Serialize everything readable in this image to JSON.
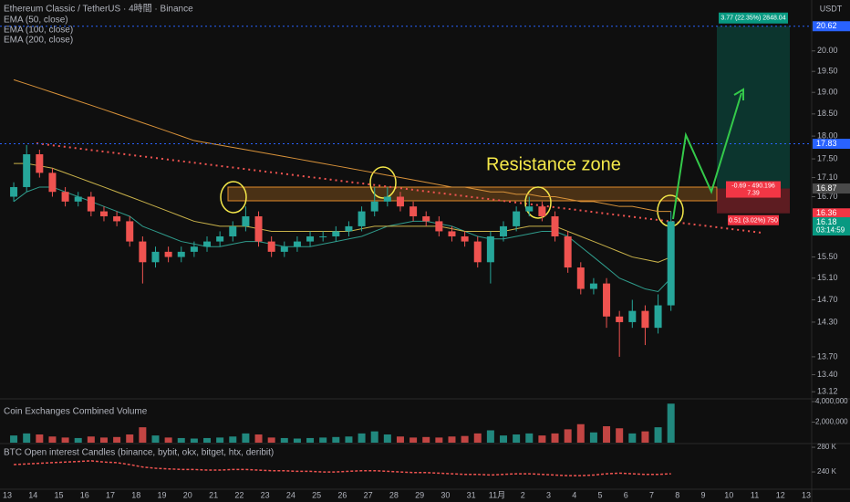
{
  "header": {
    "symbol": "Ethereum Classic / TetherUS · 4時間 · Binance",
    "currency": "USDT"
  },
  "chart_data": [
    {
      "type": "candlestick",
      "log_scale": true,
      "up_color": "#26a69a",
      "down_color": "#ef5350",
      "ylim": [
        13.02,
        21.3
      ],
      "yticks": [
        {
          "value": 20,
          "label": "20.00"
        },
        {
          "value": 19.5,
          "label": "19.50"
        },
        {
          "value": 19,
          "label": "19.00"
        },
        {
          "value": 18.5,
          "label": "18.50"
        },
        {
          "value": 18,
          "label": "18.00"
        },
        {
          "value": 17.5,
          "label": "17.50"
        },
        {
          "value": 17.1,
          "label": "17.10"
        },
        {
          "value": 16.7,
          "label": "16.70"
        },
        {
          "value": 15.5,
          "label": "15.50"
        },
        {
          "value": 15.1,
          "label": "15.10"
        },
        {
          "value": 14.7,
          "label": "14.70"
        },
        {
          "value": 14.3,
          "label": "14.30"
        },
        {
          "value": 13.7,
          "label": "13.70"
        },
        {
          "value": 13.4,
          "label": "13.40"
        },
        {
          "value": 13.12,
          "label": "13.12"
        }
      ],
      "x_axis_labels": [
        "13",
        "14",
        "15",
        "16",
        "17",
        "18",
        "19",
        "20",
        "21",
        "22",
        "23",
        "24",
        "25",
        "26",
        "27",
        "28",
        "29",
        "30",
        "31",
        "11月",
        "2",
        "3",
        "4",
        "5",
        "6",
        "7",
        "8",
        "9",
        "10",
        "11",
        "12",
        "13"
      ],
      "open": [
        16.7,
        16.9,
        17.6,
        17.2,
        16.8,
        16.6,
        16.7,
        16.4,
        16.3,
        16.2,
        15.8,
        15.4,
        15.6,
        15.5,
        15.6,
        15.7,
        15.8,
        15.9,
        16.1,
        16.3,
        15.8,
        15.6,
        15.7,
        15.8,
        15.9,
        15.9,
        16.0,
        16.1,
        16.4,
        16.6,
        16.7,
        16.5,
        16.3,
        16.2,
        16.0,
        15.9,
        15.8,
        15.4,
        15.9,
        16.1,
        16.4,
        16.5,
        16.3,
        15.9,
        15.3,
        14.9,
        15.0,
        14.4,
        14.3,
        14.5,
        14.2,
        14.6
      ],
      "high": [
        17.0,
        17.8,
        17.7,
        17.3,
        16.9,
        16.8,
        16.8,
        16.5,
        16.4,
        16.3,
        15.9,
        15.7,
        15.7,
        15.7,
        15.8,
        15.9,
        16.0,
        16.2,
        16.5,
        16.4,
        15.9,
        15.8,
        15.9,
        16.0,
        16.0,
        16.1,
        16.2,
        16.5,
        16.9,
        16.9,
        16.8,
        16.6,
        16.4,
        16.3,
        16.1,
        16.0,
        15.9,
        16.0,
        16.2,
        16.5,
        16.7,
        16.6,
        16.4,
        16.0,
        15.4,
        15.1,
        15.1,
        14.5,
        14.7,
        14.6,
        14.8,
        16.4
      ],
      "low": [
        16.6,
        16.8,
        17.1,
        16.7,
        16.5,
        16.5,
        16.3,
        16.2,
        16.1,
        15.7,
        15.0,
        15.3,
        15.4,
        15.4,
        15.5,
        15.6,
        15.7,
        15.8,
        16.0,
        15.7,
        15.5,
        15.5,
        15.6,
        15.7,
        15.8,
        15.8,
        15.9,
        16.0,
        16.3,
        16.5,
        16.4,
        16.2,
        16.1,
        15.9,
        15.8,
        15.7,
        15.3,
        15.0,
        15.8,
        16.0,
        16.3,
        16.2,
        15.8,
        15.2,
        14.8,
        14.8,
        14.2,
        13.7,
        14.2,
        13.9,
        14.1,
        14.5
      ],
      "close": [
        16.9,
        17.6,
        17.2,
        16.8,
        16.6,
        16.7,
        16.4,
        16.3,
        16.2,
        15.8,
        15.4,
        15.6,
        15.5,
        15.6,
        15.7,
        15.8,
        15.9,
        16.1,
        16.3,
        15.8,
        15.6,
        15.7,
        15.8,
        15.9,
        15.9,
        16.0,
        16.1,
        16.4,
        16.6,
        16.7,
        16.5,
        16.3,
        16.2,
        16.0,
        15.9,
        15.8,
        15.4,
        15.9,
        16.1,
        16.4,
        16.5,
        16.3,
        15.9,
        15.3,
        14.9,
        15.0,
        14.4,
        14.3,
        14.5,
        14.2,
        14.6,
        16.2
      ],
      "series": [
        {
          "name": "EMA (50, close)",
          "color": "#2f9c8c",
          "values": [
            16.6,
            16.8,
            16.9,
            16.9,
            16.8,
            16.7,
            16.6,
            16.5,
            16.4,
            16.3,
            16.1,
            16.0,
            15.9,
            15.8,
            15.75,
            15.7,
            15.7,
            15.75,
            15.8,
            15.8,
            15.75,
            15.7,
            15.7,
            15.7,
            15.75,
            15.8,
            15.85,
            15.9,
            16.0,
            16.1,
            16.15,
            16.2,
            16.2,
            16.15,
            16.1,
            16.0,
            15.9,
            15.85,
            15.85,
            15.9,
            15.95,
            16.0,
            16.0,
            15.9,
            15.7,
            15.5,
            15.3,
            15.1,
            15.0,
            14.9,
            14.85,
            15.1
          ]
        },
        {
          "name": "EMA (100, close)",
          "color": "#c9b24a",
          "values": [
            17.4,
            17.4,
            17.35,
            17.3,
            17.2,
            17.1,
            17.0,
            16.9,
            16.8,
            16.7,
            16.6,
            16.5,
            16.4,
            16.3,
            16.2,
            16.15,
            16.1,
            16.1,
            16.1,
            16.05,
            16.0,
            16.0,
            16.0,
            16.0,
            16.0,
            16.0,
            16.0,
            16.05,
            16.1,
            16.1,
            16.1,
            16.1,
            16.1,
            16.1,
            16.05,
            16.0,
            16.0,
            16.0,
            16.0,
            16.05,
            16.1,
            16.1,
            16.1,
            16.0,
            15.9,
            15.8,
            15.7,
            15.6,
            15.5,
            15.45,
            15.4,
            15.5
          ]
        },
        {
          "name": "EMA (200, close)",
          "color": "#d8923a",
          "values": [
            19.3,
            19.2,
            19.1,
            19.0,
            18.9,
            18.8,
            18.7,
            18.6,
            18.5,
            18.4,
            18.3,
            18.2,
            18.1,
            18.0,
            17.9,
            17.85,
            17.8,
            17.75,
            17.7,
            17.65,
            17.6,
            17.55,
            17.5,
            17.45,
            17.4,
            17.35,
            17.3,
            17.25,
            17.2,
            17.15,
            17.1,
            17.05,
            17.0,
            16.95,
            16.9,
            16.9,
            16.85,
            16.8,
            16.8,
            16.75,
            16.75,
            16.7,
            16.7,
            16.65,
            16.6,
            16.6,
            16.55,
            16.5,
            16.5,
            16.45,
            16.4,
            16.4
          ]
        }
      ],
      "price_labels": [
        {
          "value": 20.62,
          "color": "#2962ff",
          "line_style": "dotted"
        },
        {
          "value": 17.83,
          "color": "#2962ff",
          "line_style": "dotted"
        },
        {
          "value": 16.87,
          "color": "#4a4a4a"
        },
        {
          "value": 16.36,
          "color": "#f23645"
        },
        {
          "value": 16.18,
          "color": "#089981",
          "countdown": "03:14:59"
        }
      ],
      "annotation": "Resistance zone",
      "position": {
        "target": 20.62,
        "entry": 16.87,
        "stop": 16.36,
        "target_label": "3.77 (22.35%) 2848.04",
        "entry_label": "-0.69 - 490.196",
        "entry_label_2": "7.39",
        "stop_label": "0.51 (3.02%) 750"
      }
    },
    {
      "type": "bar",
      "title": "Coin Exchanges Combined Volume",
      "up_color": "#26a69a",
      "down_color": "#ef5350",
      "ylim": [
        0,
        4000000
      ],
      "yticks": [
        {
          "value": 4000000,
          "label": "4,000,000"
        },
        {
          "value": 2000000,
          "label": "2,000,000"
        }
      ],
      "values": [
        700000,
        900000,
        800000,
        600000,
        500000,
        450000,
        600000,
        500000,
        550000,
        800000,
        1500000,
        700000,
        500000,
        450000,
        400000,
        450000,
        500000,
        600000,
        900000,
        800000,
        500000,
        450000,
        400000,
        450000,
        500000,
        550000,
        600000,
        900000,
        1100000,
        800000,
        600000,
        500000,
        550000,
        500000,
        600000,
        650000,
        900000,
        1200000,
        700000,
        800000,
        900000,
        700000,
        900000,
        1300000,
        1800000,
        1000000,
        1600000,
        1400000,
        900000,
        1100000,
        1500000,
        3800000
      ]
    },
    {
      "type": "line",
      "title": "BTC Open interest Candles (binance, bybit, okx, bitget, htx, deribit)",
      "color": "#ef5350",
      "ylim": [
        212000,
        283000
      ],
      "yticks": [
        {
          "value": 280000,
          "label": "280 K"
        },
        {
          "value": 240000,
          "label": "240 K"
        }
      ],
      "values": [
        252000,
        253000,
        254000,
        255000,
        256000,
        257000,
        258000,
        256000,
        255000,
        252000,
        248000,
        246000,
        245000,
        244000,
        244000,
        243000,
        243000,
        244000,
        244000,
        243000,
        242000,
        242000,
        241000,
        241000,
        240000,
        240000,
        241000,
        242000,
        242000,
        241000,
        240000,
        239000,
        239000,
        238000,
        237000,
        236000,
        236000,
        235000,
        236000,
        237000,
        237000,
        236000,
        235000,
        234000,
        234000,
        235000,
        237000,
        238000,
        237000,
        236000,
        236000,
        237000
      ]
    }
  ]
}
